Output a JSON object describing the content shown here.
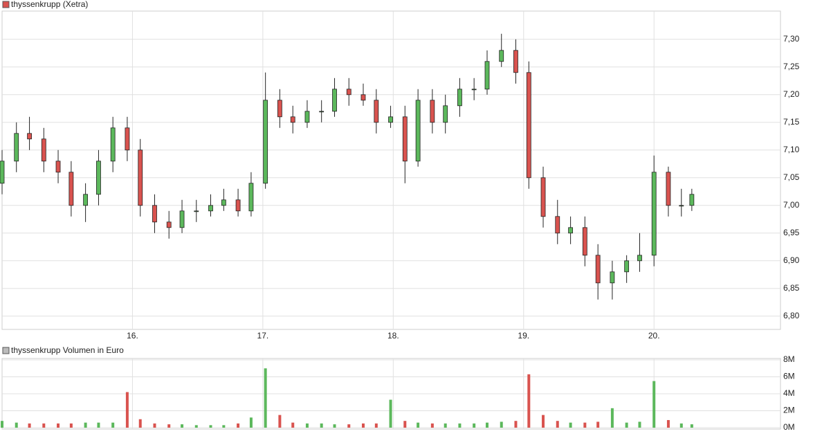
{
  "chart_data": [
    {
      "type": "candlestick",
      "legend": "thyssenkrupp (Xetra)",
      "legend_color": "#d9534f",
      "up_color": "#5cb85c",
      "down_color": "#d9534f",
      "grid": true,
      "x": [
        15.0,
        15.11,
        15.21,
        15.32,
        15.43,
        15.53,
        15.64,
        15.74,
        15.85,
        15.96,
        16.06,
        16.17,
        16.28,
        16.38,
        16.49,
        16.6,
        16.7,
        16.81,
        16.91,
        17.02,
        17.13,
        17.23,
        17.34,
        17.45,
        17.55,
        17.66,
        17.77,
        17.87,
        17.98,
        18.09,
        18.19,
        18.3,
        18.4,
        18.51,
        18.62,
        18.72,
        18.83,
        18.94,
        19.04,
        19.15,
        19.26,
        19.36,
        19.47,
        19.57,
        19.68,
        19.79,
        19.89,
        20.0,
        20.11,
        20.21,
        20.29
      ],
      "open": [
        7.04,
        7.08,
        7.13,
        7.12,
        7.08,
        7.06,
        7.0,
        7.02,
        7.08,
        7.14,
        7.1,
        7.0,
        6.97,
        6.96,
        6.99,
        6.99,
        7.0,
        7.01,
        6.99,
        7.04,
        7.19,
        7.16,
        7.15,
        7.17,
        7.17,
        7.21,
        7.2,
        7.19,
        7.15,
        7.16,
        7.08,
        7.19,
        7.15,
        7.18,
        7.21,
        7.21,
        7.26,
        7.28,
        7.24,
        7.05,
        6.98,
        6.95,
        6.96,
        6.91,
        6.86,
        6.88,
        6.9,
        6.91,
        7.06,
        7.0,
        7.0
      ],
      "high": [
        7.1,
        7.15,
        7.16,
        7.14,
        7.1,
        7.08,
        7.04,
        7.1,
        7.16,
        7.16,
        7.12,
        7.02,
        6.99,
        7.01,
        7.01,
        7.02,
        7.03,
        7.03,
        7.06,
        7.24,
        7.21,
        7.18,
        7.19,
        7.19,
        7.23,
        7.23,
        7.22,
        7.21,
        7.18,
        7.18,
        7.21,
        7.21,
        7.2,
        7.23,
        7.23,
        7.28,
        7.31,
        7.3,
        7.26,
        7.07,
        7.01,
        6.98,
        6.98,
        6.93,
        6.9,
        6.91,
        6.95,
        7.09,
        7.07,
        7.03,
        7.03
      ],
      "low": [
        7.02,
        7.06,
        7.1,
        7.06,
        7.04,
        6.98,
        6.97,
        7.0,
        7.06,
        7.08,
        6.98,
        6.95,
        6.94,
        6.95,
        6.97,
        6.98,
        6.99,
        6.98,
        6.98,
        7.03,
        7.14,
        7.13,
        7.14,
        7.15,
        7.16,
        7.18,
        7.18,
        7.13,
        7.14,
        7.04,
        7.07,
        7.13,
        7.13,
        7.16,
        7.19,
        7.2,
        7.25,
        7.22,
        7.03,
        6.96,
        6.93,
        6.93,
        6.89,
        6.83,
        6.83,
        6.86,
        6.88,
        6.89,
        6.98,
        6.98,
        6.99
      ],
      "close": [
        7.08,
        7.13,
        7.12,
        7.08,
        7.06,
        7.0,
        7.02,
        7.08,
        7.14,
        7.1,
        7.0,
        6.97,
        6.96,
        6.99,
        6.99,
        7.0,
        7.01,
        6.99,
        7.04,
        7.19,
        7.16,
        7.15,
        7.17,
        7.17,
        7.21,
        7.2,
        7.19,
        7.15,
        7.16,
        7.08,
        7.19,
        7.15,
        7.18,
        7.21,
        7.21,
        7.26,
        7.28,
        7.24,
        7.05,
        6.98,
        6.95,
        6.96,
        6.91,
        6.86,
        6.88,
        6.9,
        6.91,
        7.06,
        7.0,
        7.0,
        7.02
      ],
      "xlim": [
        15.0,
        20.97
      ],
      "xticks": [
        {
          "value": 16,
          "label": "16."
        },
        {
          "value": 17,
          "label": "17."
        },
        {
          "value": 18,
          "label": "18."
        },
        {
          "value": 19,
          "label": "19."
        },
        {
          "value": 20,
          "label": "20."
        }
      ],
      "ylim": [
        6.776,
        7.351
      ],
      "yticks": [
        {
          "value": 6.8,
          "label": "6,80"
        },
        {
          "value": 6.85,
          "label": "6,85"
        },
        {
          "value": 6.9,
          "label": "6,90"
        },
        {
          "value": 6.95,
          "label": "6,95"
        },
        {
          "value": 7.0,
          "label": "7,00"
        },
        {
          "value": 7.05,
          "label": "7,05"
        },
        {
          "value": 7.1,
          "label": "7,10"
        },
        {
          "value": 7.15,
          "label": "7,15"
        },
        {
          "value": 7.2,
          "label": "7,20"
        },
        {
          "value": 7.25,
          "label": "7,25"
        },
        {
          "value": 7.3,
          "label": "7,30"
        }
      ]
    },
    {
      "type": "bar",
      "legend": "thyssenkrupp Volumen in Euro",
      "legend_color": "#bbbbbb",
      "up_color": "#5cb85c",
      "down_color": "#d9534f",
      "grid": true,
      "values": [
        0.8,
        0.6,
        0.5,
        0.5,
        0.5,
        0.5,
        0.6,
        0.6,
        0.6,
        4.2,
        1.0,
        0.5,
        0.4,
        0.4,
        0.3,
        0.3,
        0.3,
        0.5,
        1.2,
        7.0,
        1.5,
        0.6,
        0.5,
        0.5,
        0.4,
        0.4,
        0.5,
        0.5,
        3.3,
        0.8,
        0.6,
        0.5,
        0.5,
        0.5,
        0.5,
        0.6,
        0.7,
        0.8,
        6.3,
        1.5,
        0.8,
        0.6,
        0.6,
        0.7,
        2.3,
        0.6,
        0.7,
        5.5,
        0.9,
        0.5,
        0.4
      ],
      "ylim": [
        0,
        8
      ],
      "yticks": [
        {
          "value": 0,
          "label": "0M"
        },
        {
          "value": 2,
          "label": "2M"
        },
        {
          "value": 4,
          "label": "4M"
        },
        {
          "value": 6,
          "label": "6M"
        },
        {
          "value": 8,
          "label": "8M"
        }
      ]
    }
  ]
}
